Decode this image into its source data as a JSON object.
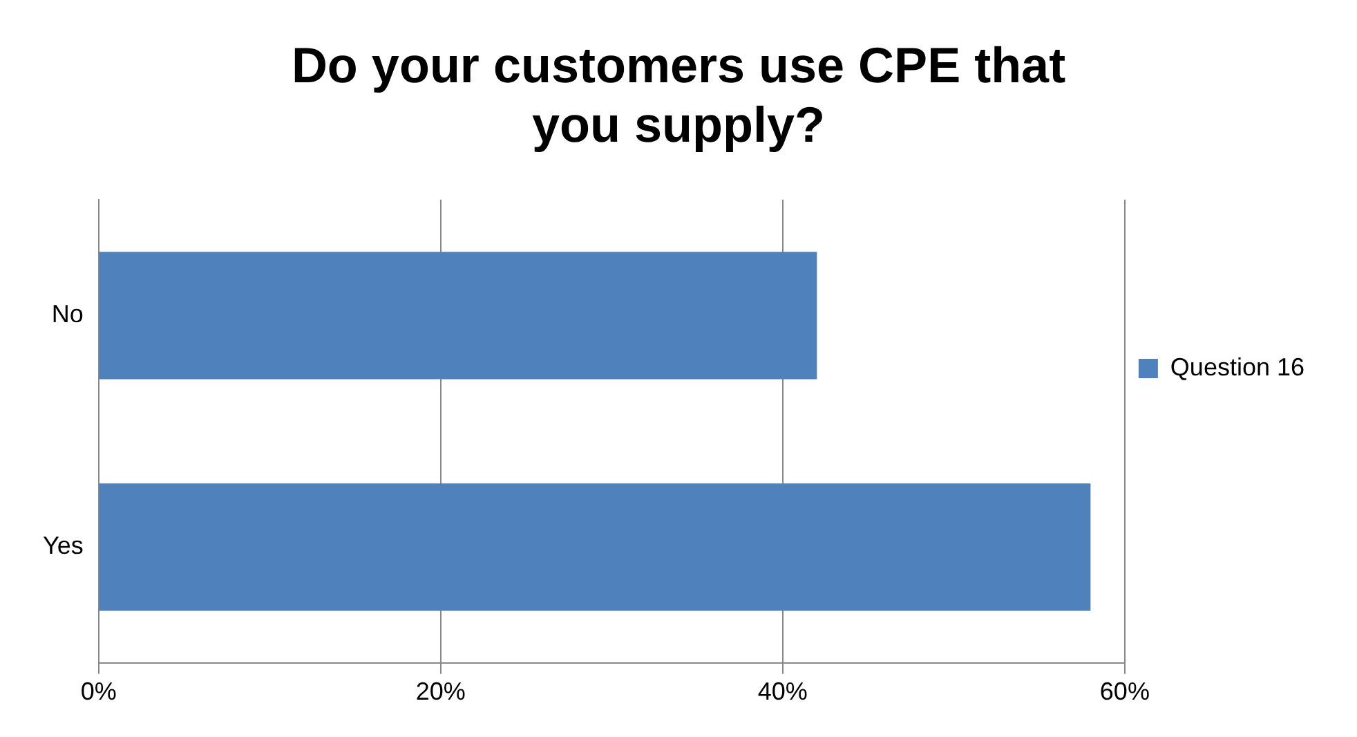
{
  "chart_data": {
    "type": "bar",
    "orientation": "horizontal",
    "title": "Do your customers use CPE that you supply?",
    "categories": [
      "No",
      "Yes"
    ],
    "series": [
      {
        "name": "Question 16",
        "color": "#4f81bd",
        "values": [
          42,
          58
        ]
      }
    ],
    "xlim": [
      0,
      60
    ],
    "xticks": [
      {
        "value": 0,
        "label": "0%"
      },
      {
        "value": 20,
        "label": "20%"
      },
      {
        "value": 40,
        "label": "40%"
      },
      {
        "value": 60,
        "label": "60%"
      }
    ],
    "grid": "x",
    "legend": "right"
  }
}
